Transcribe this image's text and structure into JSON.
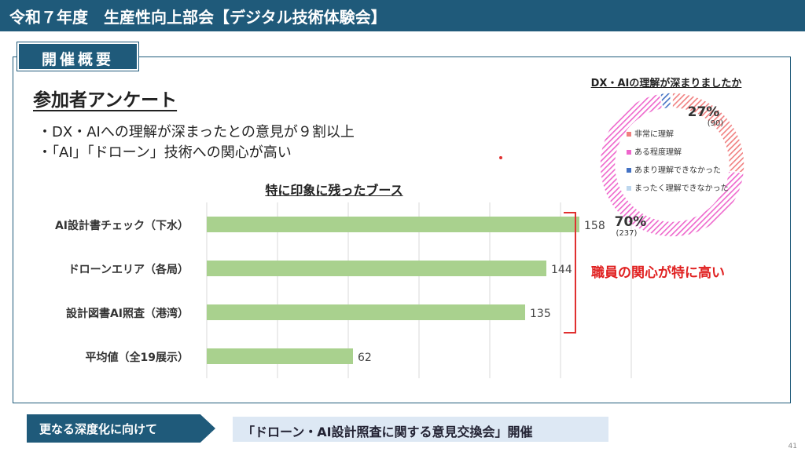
{
  "header": {
    "title": "令和７年度　生産性向上部会【デジタル技術体験会】"
  },
  "section": {
    "label": "開催概要"
  },
  "survey": {
    "title": "参加者アンケート",
    "bullets": [
      "・DX・AIへの理解が深まったとの意見が９割以上",
      "・「AI」「ドローン」技術への関心が高い"
    ]
  },
  "callout": {
    "text": "職員の関心が特に高い",
    "color": "#e02020"
  },
  "footer": {
    "label": "更なる深度化に向けて",
    "text": "「ドローン・AI設計照査に関する意見交換会」開催",
    "page": "41"
  },
  "colors": {
    "header": "#1f5a7a",
    "bar": "#a9d18e"
  },
  "chart_data": [
    {
      "type": "bar",
      "orientation": "horizontal",
      "title": "特に印象に残ったブース",
      "categories": [
        "AI設計書チェック（下水）",
        "ドローンエリア（各局）",
        "設計図書AI照査（港湾）",
        "平均値（全19展示）"
      ],
      "values": [
        158,
        144,
        135,
        62
      ],
      "xlim": [
        0,
        180
      ],
      "grid": true,
      "xlabel": "",
      "ylabel": ""
    },
    {
      "type": "pie",
      "variant": "doughnut",
      "title": "DX・AIの理解が深まりましたか",
      "categories": [
        "非常に理解",
        "ある程度理解",
        "あまり理解できなかった",
        "まったく理解できなかった"
      ],
      "values": [
        90,
        237,
        8,
        1
      ],
      "percent_labels": [
        "27%",
        "70%"
      ],
      "count_labels": [
        "(90)",
        "(237)"
      ],
      "colors": [
        "#f07f7f",
        "#ee66cc",
        "#4472c4",
        "#bdd7ee"
      ],
      "legend": "center"
    }
  ]
}
